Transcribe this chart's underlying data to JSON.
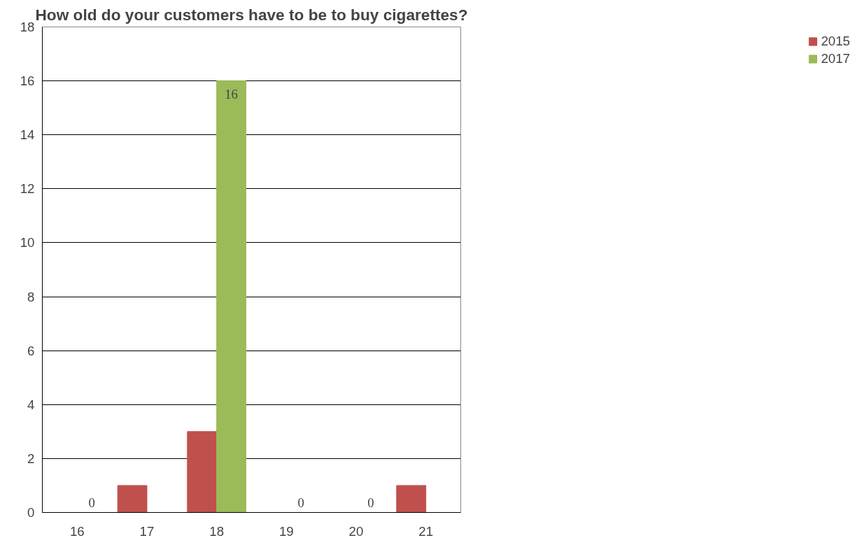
{
  "chart_data": {
    "type": "bar",
    "title": "How old do your customers have to be to buy cigarettes?",
    "categories": [
      "16",
      "17",
      "18",
      "19",
      "20",
      "21"
    ],
    "series": [
      {
        "name": "2015",
        "color": "#c0504d",
        "values": [
          null,
          1,
          3,
          null,
          null,
          1
        ]
      },
      {
        "name": "2017",
        "color": "#9bbb59",
        "values": [
          0,
          null,
          16,
          0,
          0,
          null
        ],
        "value_labels": [
          "0",
          null,
          "16",
          "0",
          "0",
          null
        ]
      }
    ],
    "ylim": [
      0,
      18
    ],
    "yticks": [
      0,
      2,
      4,
      6,
      8,
      10,
      12,
      14,
      16,
      18
    ],
    "grid": "y",
    "legend": "right"
  }
}
